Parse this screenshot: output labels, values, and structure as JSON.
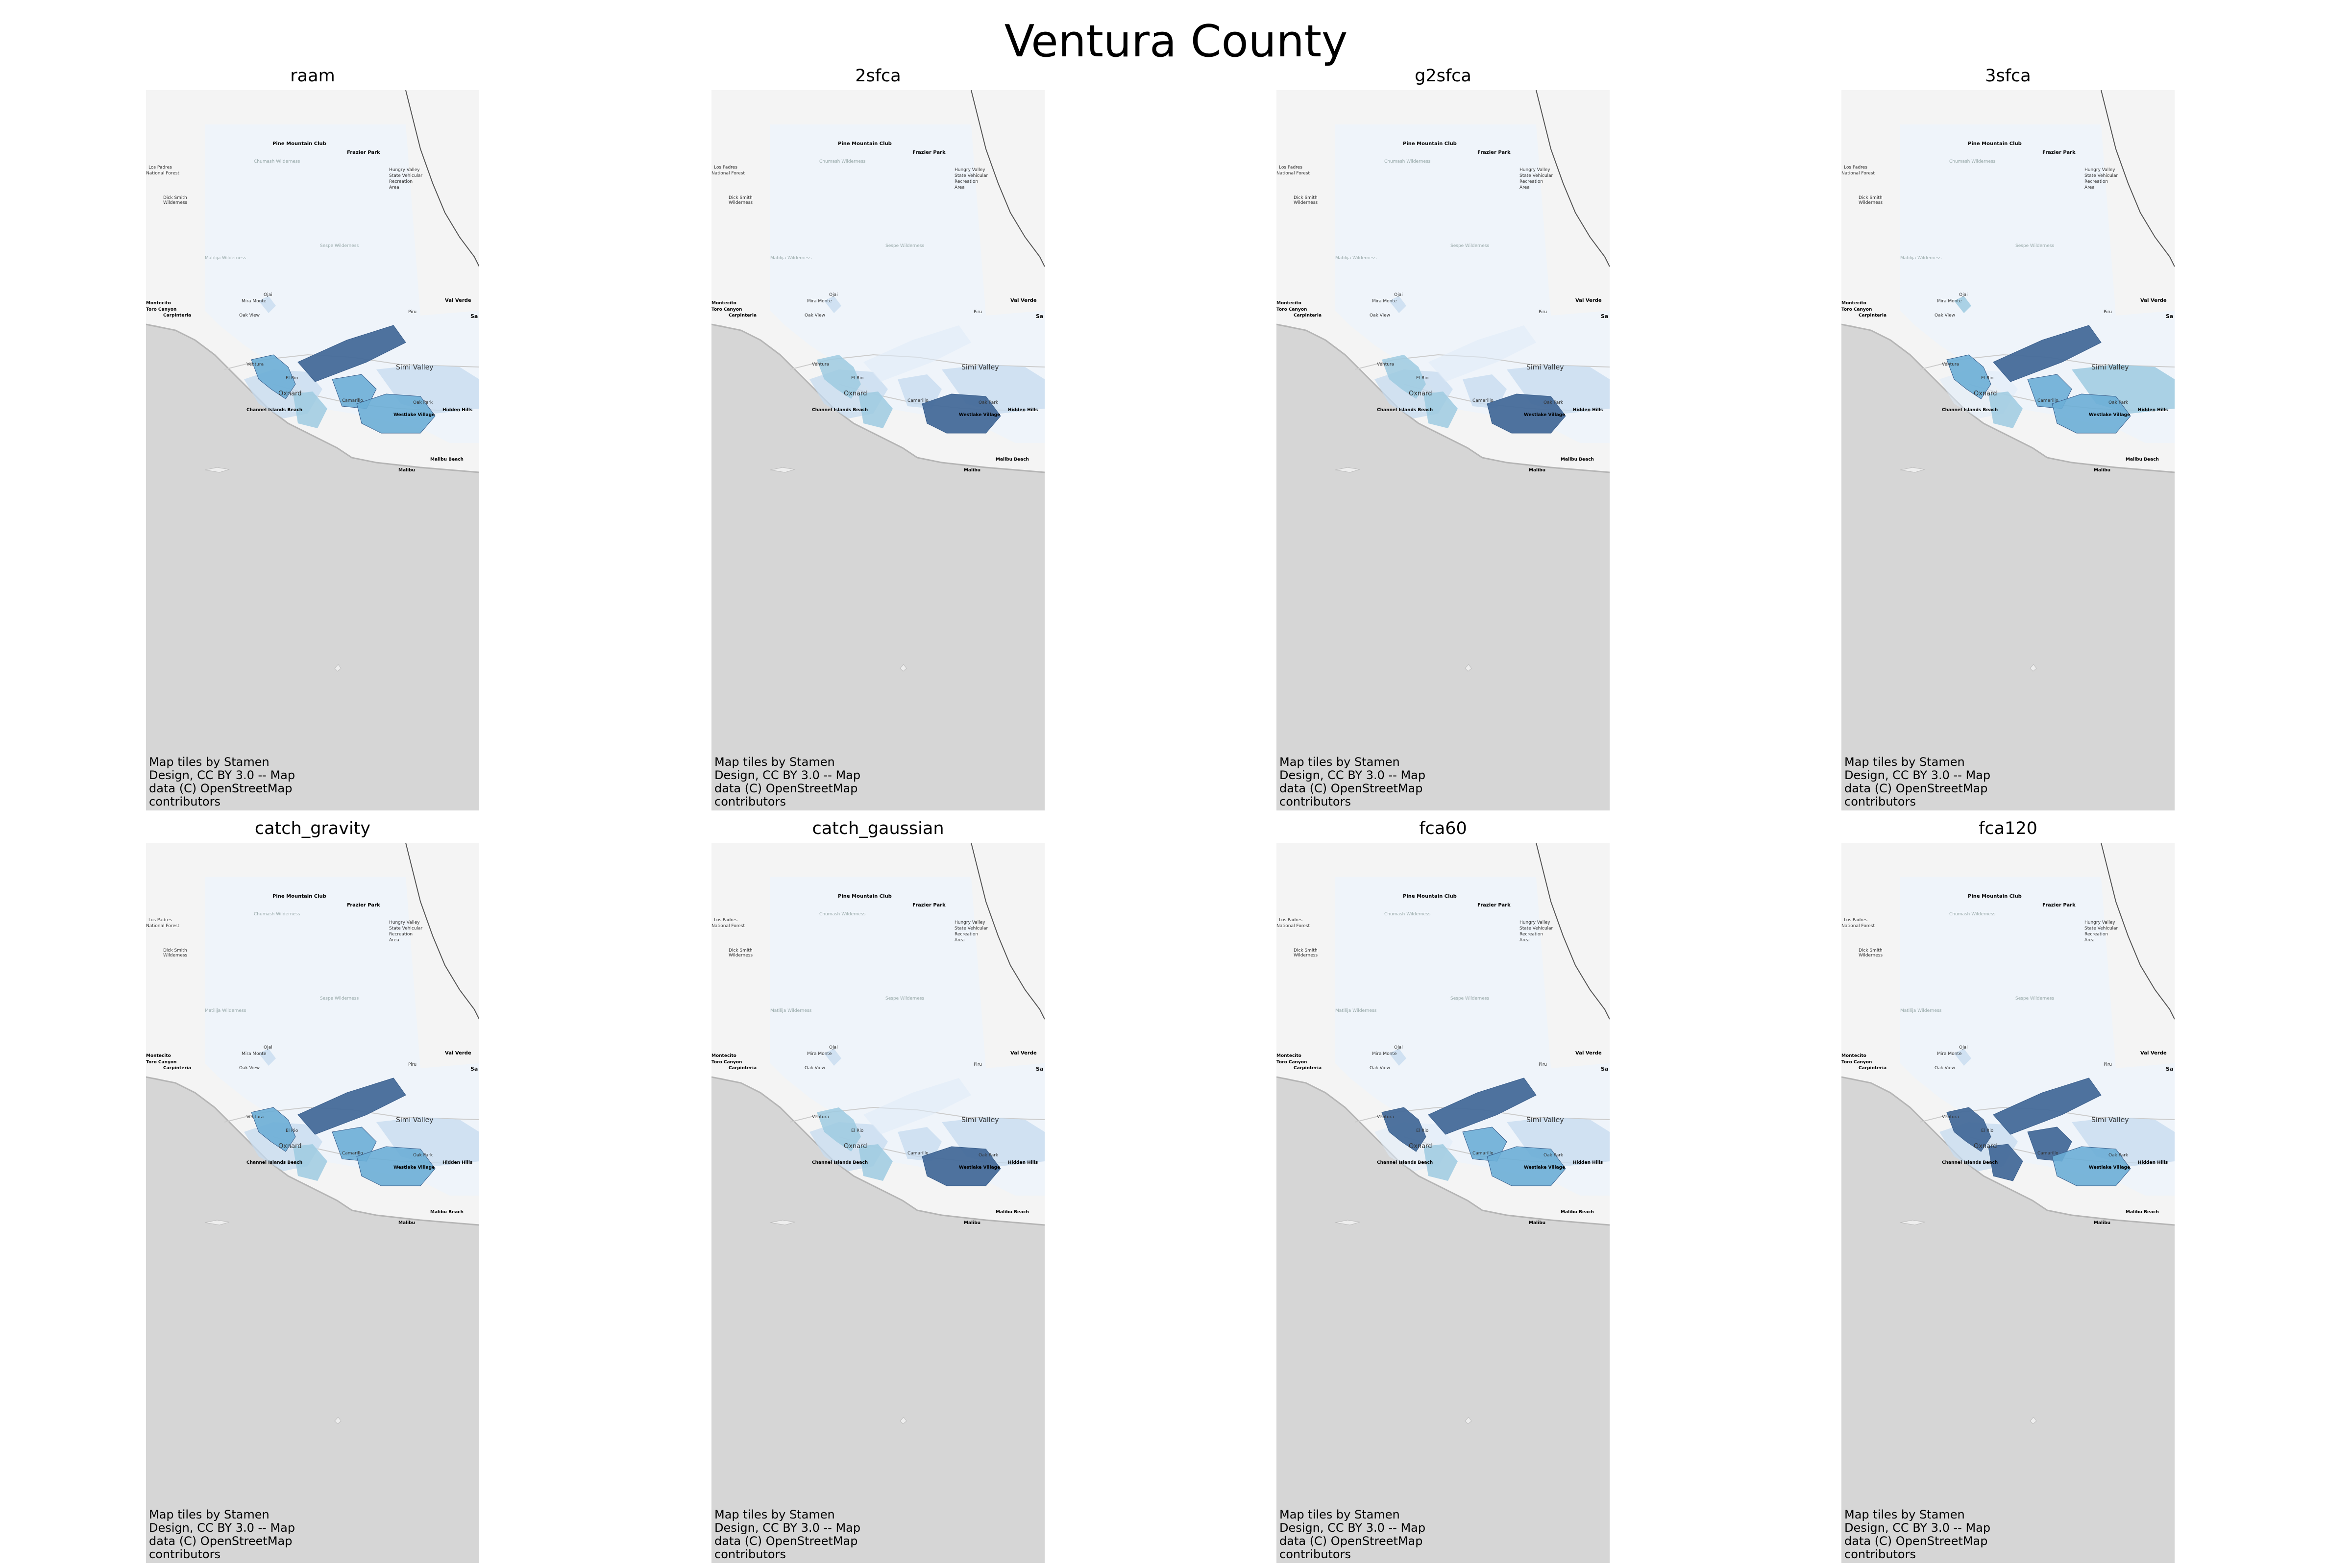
{
  "figure": {
    "title": "Ventura County"
  },
  "panels": [
    {
      "title": "raam",
      "attribution": "Map tiles by Stamen Design, CC BY 3.0 -- Map data (C) OpenStreetMap contributors"
    },
    {
      "title": "2sfca",
      "attribution": "Map tiles by Stamen Design, CC BY 3.0 -- Map data (C) OpenStreetMap contributors"
    },
    {
      "title": "g2sfca",
      "attribution": "Map tiles by Stamen Design, CC BY 3.0 -- Map data (C) OpenStreetMap contributors"
    },
    {
      "title": "3sfca",
      "attribution": "Map tiles by Stamen Design, CC BY 3.0 -- Map data (C) OpenStreetMap contributors"
    },
    {
      "title": "catch_gravity",
      "attribution": "Map tiles by Stamen Design, CC BY 3.0 -- Map data (C) OpenStreetMap contributors"
    },
    {
      "title": "catch_gaussian",
      "attribution": "Map tiles by Stamen Design, CC BY 3.0 -- Map data (C) OpenStreetMap contributors"
    },
    {
      "title": "fca60",
      "attribution": "Map tiles by Stamen Design, CC BY 3.0 -- Map data (C) OpenStreetMap contributors"
    },
    {
      "title": "fca120",
      "attribution": "Map tiles by Stamen Design, CC BY 3.0 -- Map data (C) OpenStreetMap contributors"
    }
  ],
  "map_labels": {
    "pine_mountain_club": "Pine Mountain Club",
    "frazier_park": "Frazier Park",
    "los_padres": "Los Padres",
    "national_forest": "National Forest",
    "dick_smith": "Dick Smith",
    "wilderness": "Wilderness",
    "chumash_wilderness": "Chumash Wilderness",
    "sespe_wilderness": "Sespe Wilderness",
    "matilija_wilderness": "Matilija Wilderness",
    "hungry_valley": "Hungry Valley",
    "state_vehicular": "State Vehicular",
    "recreation": "Recreation",
    "area": "Area",
    "val_verde": "Val Verde",
    "toro_canyon": "Toro Canyon",
    "carpinteria": "Carpinteria",
    "oak_view": "Oak View",
    "mira_monte": "Mira Monte",
    "ojai": "Ojai",
    "piru": "Piru",
    "simi_valley": "Simi Valley",
    "ventura": "Ventura",
    "oxnard": "Oxnard",
    "el_rio": "El Rio",
    "camarillo": "Camarillo",
    "oak_park": "Oak Park",
    "hidden_hills": "Hidden Hills",
    "westlake_village": "Westlake Village",
    "channel_islands_beach": "Channel Islands Beach",
    "malibu_beach": "Malibu Beach",
    "malibu": "Malibu",
    "montecito": "Montecito",
    "santa": "Sa"
  },
  "colors": {
    "ocean": "#d6d6d6",
    "land": "#f4f4f4",
    "county_base": "#edf3fa",
    "lightest": "#deebf7",
    "light": "#c6dbef",
    "mid": "#9ecae1",
    "mid_dark": "#6baed6",
    "dark": "#4a78b0",
    "darkest": "#456a99"
  },
  "choropleth_intensity": {
    "raam": {
      "ventura": 3,
      "santa_paula_band": 4,
      "oxnard": 2,
      "camarillo": 3,
      "thousand_oaks": 3,
      "simi": 1,
      "west_county": 1
    },
    "2sfca": {
      "ventura": 2,
      "santa_paula_band": 0,
      "oxnard": 2,
      "camarillo": 1,
      "thousand_oaks": 4,
      "simi": 1,
      "west_county": 1
    },
    "g2sfca": {
      "ventura": 2,
      "santa_paula_band": 0,
      "oxnard": 2,
      "camarillo": 1,
      "thousand_oaks": 4,
      "simi": 1,
      "west_county": 1
    },
    "3sfca": {
      "ventura": 3,
      "santa_paula_band": 4,
      "oxnard": 2,
      "camarillo": 3,
      "thousand_oaks": 3,
      "simi": 2,
      "west_county": 0
    },
    "catch_gravity": {
      "ventura": 3,
      "santa_paula_band": 4,
      "oxnard": 2,
      "camarillo": 3,
      "thousand_oaks": 3,
      "simi": 1,
      "west_county": 1
    },
    "catch_gaussian": {
      "ventura": 2,
      "santa_paula_band": 0,
      "oxnard": 2,
      "camarillo": 1,
      "thousand_oaks": 4,
      "simi": 1,
      "west_county": 1
    },
    "fca60": {
      "ventura": 4,
      "santa_paula_band": 4,
      "oxnard": 2,
      "camarillo": 3,
      "thousand_oaks": 3,
      "simi": 1,
      "west_county": 0
    },
    "fca120": {
      "ventura": 4,
      "santa_paula_band": 4,
      "oxnard": 4,
      "camarillo": 4,
      "thousand_oaks": 3,
      "simi": 1,
      "west_county": 1
    }
  }
}
